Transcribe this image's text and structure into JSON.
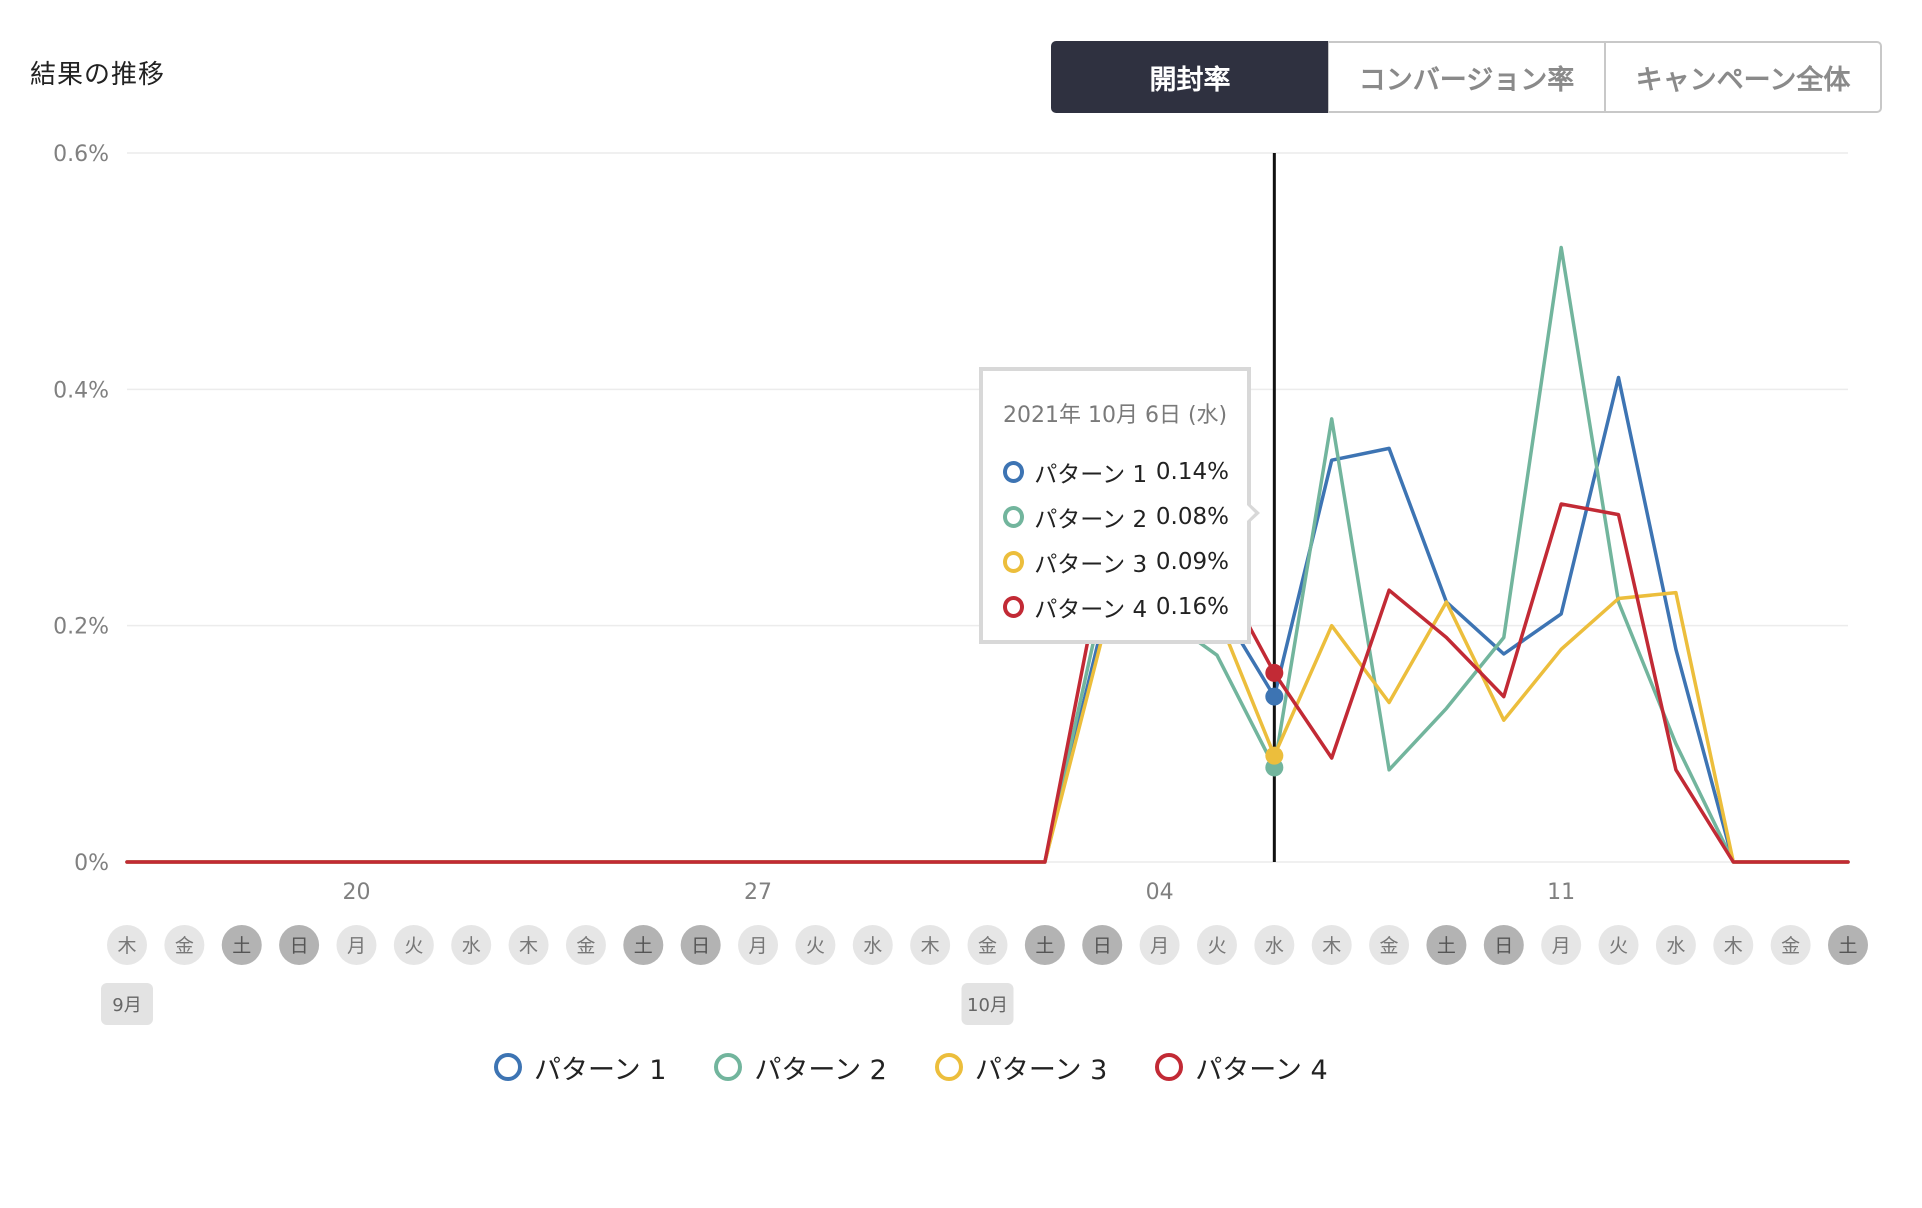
{
  "title": "結果の推移",
  "tabs": [
    {
      "label": "開封率",
      "active": true
    },
    {
      "label": "コンバージョン率",
      "active": false
    },
    {
      "label": "キャンペーン全体",
      "active": false
    }
  ],
  "tooltip": {
    "date": "2021年 10月 6日 (水)",
    "rows": [
      {
        "label": "パターン 1",
        "value": "0.14%",
        "color": "#3d74b3"
      },
      {
        "label": "パターン 2",
        "value": "0.08%",
        "color": "#72b59d"
      },
      {
        "label": "パターン 3",
        "value": "0.09%",
        "color": "#ecbe3c"
      },
      {
        "label": "パターン 4",
        "value": "0.16%",
        "color": "#c22a35"
      }
    ]
  },
  "legend": [
    {
      "label": "パターン 1",
      "color": "#3d74b3"
    },
    {
      "label": "パターン 2",
      "color": "#72b59d"
    },
    {
      "label": "パターン 3",
      "color": "#ecbe3c"
    },
    {
      "label": "パターン 4",
      "color": "#c22a35"
    }
  ],
  "chart_data": {
    "type": "line",
    "x": [
      "2021-09-16",
      "2021-09-17",
      "2021-09-18",
      "2021-09-19",
      "2021-09-20",
      "2021-09-21",
      "2021-09-22",
      "2021-09-23",
      "2021-09-24",
      "2021-09-25",
      "2021-09-26",
      "2021-09-27",
      "2021-09-28",
      "2021-09-29",
      "2021-09-30",
      "2021-10-01",
      "2021-10-02",
      "2021-10-03",
      "2021-10-04",
      "2021-10-05",
      "2021-10-06",
      "2021-10-07",
      "2021-10-08",
      "2021-10-09",
      "2021-10-10",
      "2021-10-11",
      "2021-10-12",
      "2021-10-13",
      "2021-10-14",
      "2021-10-15",
      "2021-10-16"
    ],
    "x_tick_labels": [
      {
        "date": "2021-09-20",
        "label": "20"
      },
      {
        "date": "2021-09-27",
        "label": "27"
      },
      {
        "date": "2021-10-04",
        "label": "04"
      },
      {
        "date": "2021-10-11",
        "label": "11"
      }
    ],
    "weekday_labels": [
      "木",
      "金",
      "土",
      "日",
      "月",
      "火",
      "水",
      "木",
      "金",
      "土",
      "日",
      "月",
      "火",
      "水",
      "木",
      "金",
      "土",
      "日",
      "月",
      "火",
      "水",
      "木",
      "金",
      "土",
      "日",
      "月",
      "火",
      "水",
      "木",
      "金",
      "土"
    ],
    "weekend_flags": [
      false,
      false,
      true,
      true,
      false,
      false,
      false,
      false,
      false,
      true,
      true,
      false,
      false,
      false,
      false,
      false,
      true,
      true,
      false,
      false,
      false,
      false,
      false,
      true,
      true,
      false,
      false,
      false,
      false,
      false,
      true
    ],
    "month_labels": [
      {
        "date": "2021-09-16",
        "label": "9月"
      },
      {
        "date": "2021-10-01",
        "label": "10月"
      }
    ],
    "y_tick_labels": [
      "0%",
      "0.2%",
      "0.4%",
      "0.6%"
    ],
    "y_ticks": [
      0,
      0.2,
      0.4,
      0.6
    ],
    "ylim": [
      0,
      0.6
    ],
    "grid": true,
    "legend_position": "bottom",
    "highlight_date": "2021-10-06",
    "series": [
      {
        "name": "パターン 1",
        "color": "#3d74b3",
        "values": [
          0,
          0,
          0,
          0,
          0,
          0,
          0,
          0,
          0,
          0,
          0,
          0,
          0,
          0,
          0,
          0,
          0,
          0.2,
          0.24,
          0.22,
          0.14,
          0.34,
          0.35,
          0.22,
          0.176,
          0.21,
          0.41,
          0.18,
          0,
          0,
          0
        ]
      },
      {
        "name": "パターン 2",
        "color": "#72b59d",
        "values": [
          0,
          0,
          0,
          0,
          0,
          0,
          0,
          0,
          0,
          0,
          0,
          0,
          0,
          0,
          0,
          0,
          0,
          0.22,
          0.21,
          0.175,
          0.08,
          0.375,
          0.078,
          0.13,
          0.19,
          0.52,
          0.22,
          0.1,
          0,
          0,
          0
        ]
      },
      {
        "name": "パターン 3",
        "color": "#ecbe3c",
        "values": [
          0,
          0,
          0,
          0,
          0,
          0,
          0,
          0,
          0,
          0,
          0,
          0,
          0,
          0,
          0,
          0,
          0,
          0.19,
          0.23,
          0.21,
          0.09,
          0.2,
          0.135,
          0.22,
          0.12,
          0.18,
          0.223,
          0.228,
          0,
          0,
          0
        ]
      },
      {
        "name": "パターン 4",
        "color": "#c22a35",
        "values": [
          0,
          0,
          0,
          0,
          0,
          0,
          0,
          0,
          0,
          0,
          0,
          0,
          0,
          0,
          0,
          0,
          0,
          0.25,
          0.26,
          0.25,
          0.16,
          0.088,
          0.23,
          0.19,
          0.14,
          0.303,
          0.294,
          0.078,
          0,
          0,
          0
        ]
      }
    ]
  }
}
